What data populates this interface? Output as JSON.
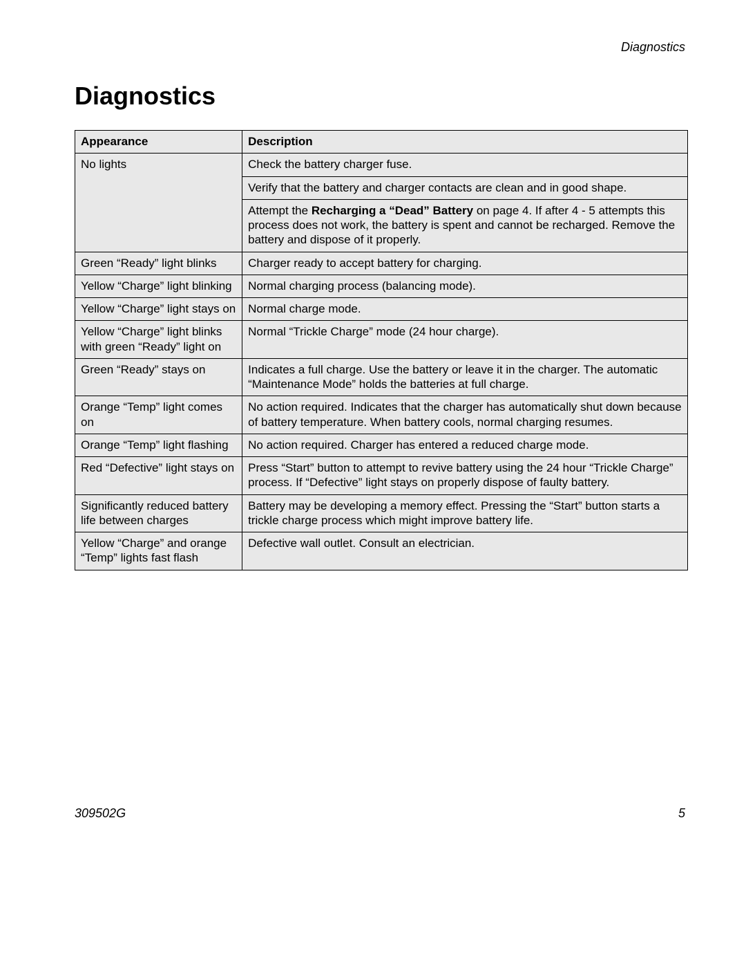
{
  "header": {
    "running_head": "Diagnostics"
  },
  "title": "Diagnostics",
  "footer": {
    "doc_number": "309502G",
    "page_number": "5"
  },
  "table": {
    "columns": [
      "Appearance",
      "Description"
    ],
    "column_widths_pct": [
      27.3,
      72.7
    ],
    "background_color": "#e8e8e8",
    "border_color": "#000000",
    "font_size_pt": 13,
    "rows": [
      {
        "appearance": "No lights",
        "descriptions": [
          {
            "pre": "Check the battery charger fuse."
          },
          {
            "pre": "Verify that the battery and charger contacts are clean and in good shape."
          },
          {
            "pre": "Attempt the ",
            "bold": "Recharging a “Dead” Battery",
            "post": " on page 4. If after 4 - 5 attempts this process does not work, the battery is spent and cannot be recharged. Remove the battery and dispose of it properly."
          }
        ]
      },
      {
        "appearance": "Green “Ready” light blinks",
        "descriptions": [
          {
            "pre": "Charger ready to accept battery for charging."
          }
        ]
      },
      {
        "appearance": "Yellow “Charge” light blinking",
        "descriptions": [
          {
            "pre": "Normal charging process (balancing mode)."
          }
        ]
      },
      {
        "appearance": "Yellow “Charge” light stays on",
        "descriptions": [
          {
            "pre": "Normal charge mode."
          }
        ]
      },
      {
        "appearance": "Yellow “Charge” light blinks with green “Ready” light on",
        "descriptions": [
          {
            "pre": "Normal “Trickle Charge” mode (24 hour charge)."
          }
        ]
      },
      {
        "appearance": "Green “Ready” stays on",
        "descriptions": [
          {
            "pre": "Indicates a full charge. Use the battery or leave it in the charger. The automatic “Maintenance Mode” holds the batteries at full charge."
          }
        ]
      },
      {
        "appearance": "Orange “Temp” light comes on",
        "descriptions": [
          {
            "pre": "No action required. Indicates that the charger has automatically shut down because of battery temperature. When battery cools, normal charging resumes."
          }
        ]
      },
      {
        "appearance": "Orange “Temp” light flashing",
        "descriptions": [
          {
            "pre": "No action required. Charger has entered a reduced charge mode."
          }
        ]
      },
      {
        "appearance": "Red “Defective” light stays on",
        "descriptions": [
          {
            "pre": "Press “Start” button to attempt to revive battery using the 24 hour “Trickle Charge” process. If “Defective” light stays on properly dispose of faulty battery."
          }
        ]
      },
      {
        "appearance": "Significantly reduced battery life between charges",
        "descriptions": [
          {
            "pre": "Battery may be developing a memory effect. Pressing the “Start” button starts a trickle charge process which might improve battery life."
          }
        ]
      },
      {
        "appearance": "Yellow “Charge” and orange “Temp” lights fast flash",
        "descriptions": [
          {
            "pre": "Defective wall outlet. Consult an electrician."
          }
        ]
      }
    ]
  }
}
